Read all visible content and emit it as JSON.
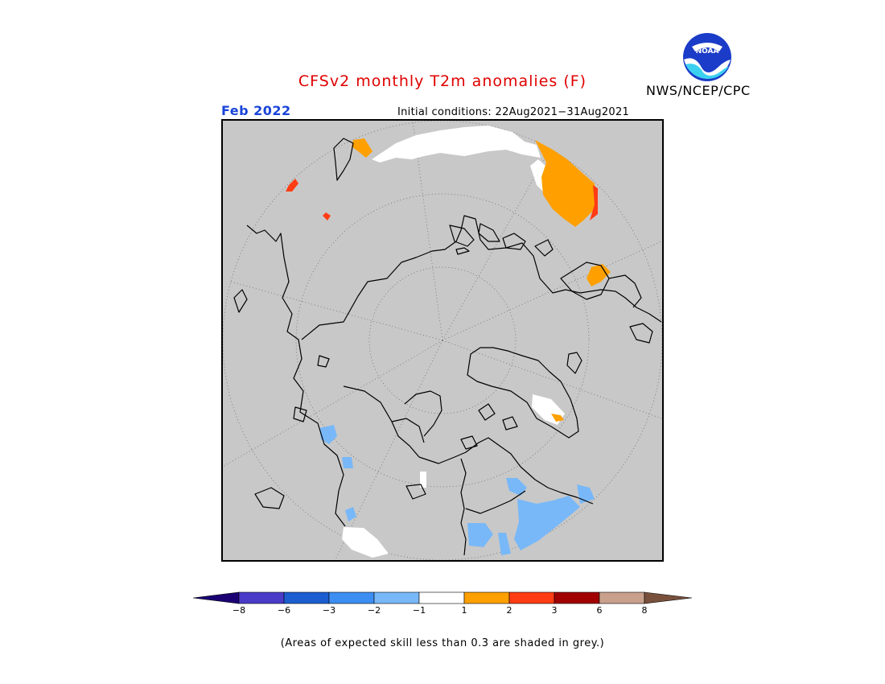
{
  "title": "CFSv2 monthly T2m anomalies (F)",
  "organization": "NWS/NCEP/CPC",
  "logo_text": "NOAA",
  "target_month": "Feb 2022",
  "initial_conditions": "Initial conditions: 22Aug2021−31Aug2021",
  "footnote": "(Areas of expected skill less than 0.3 are shaded in grey.)",
  "colorbar": {
    "colors": [
      "#1a0073",
      "#4a3cc8",
      "#1c5ed0",
      "#3c8ef2",
      "#78b8f8",
      "#ffffff",
      "#ffa000",
      "#ff3c14",
      "#a00000",
      "#c8a08c",
      "#78503c"
    ],
    "labels": [
      "−8",
      "−6",
      "−3",
      "−2",
      "−1",
      "1",
      "2",
      "3",
      "6",
      "8"
    ]
  },
  "map_colors": {
    "grey_background": "#c8c8c8",
    "positive_1_2": "#ffa000",
    "positive_2_3": "#ff3c14",
    "negative_1_2": "#78b8f8",
    "neutral": "#ffffff"
  }
}
